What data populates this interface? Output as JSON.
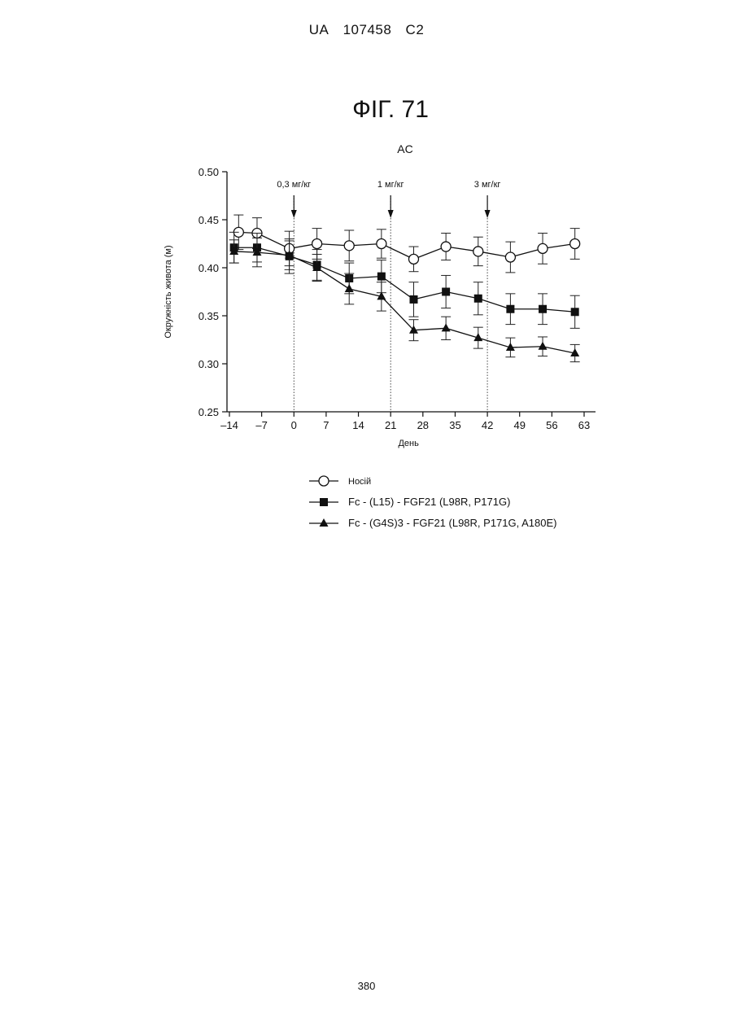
{
  "header": {
    "country": "UA",
    "number": "107458",
    "kind": "C2"
  },
  "figure_title": "ФІГ. 71",
  "page_number": "380",
  "chart_data": {
    "type": "line",
    "title": "AC",
    "xlabel": "День",
    "ylabel": "Окружність живота (м)",
    "xlim": [
      -14,
      63
    ],
    "ylim": [
      0.25,
      0.5
    ],
    "x_ticks": [
      -14,
      -7,
      0,
      7,
      14,
      21,
      28,
      35,
      42,
      49,
      56,
      63
    ],
    "x_tick_labels": [
      "–14",
      "–7",
      "0",
      "7",
      "14",
      "21",
      "28",
      "35",
      "42",
      "49",
      "56",
      "63"
    ],
    "y_ticks": [
      0.25,
      0.3,
      0.35,
      0.4,
      0.45,
      0.5
    ],
    "y_tick_labels": [
      "0.25",
      "0.30",
      "0.35",
      "0.40",
      "0.45",
      "0.50"
    ],
    "grid": false,
    "legend_position": "bottom",
    "annotations": [
      {
        "x": 0,
        "label": "0,3 мг/кг"
      },
      {
        "x": 21,
        "label": "1 мг/кг"
      },
      {
        "x": 42,
        "label": "3 мг/кг"
      }
    ],
    "series": [
      {
        "name": "Носій",
        "marker": "open-circle",
        "x": [
          -12,
          -8,
          -1,
          5,
          12,
          19,
          26,
          33,
          40,
          47,
          54,
          61
        ],
        "values": [
          0.437,
          0.436,
          0.42,
          0.425,
          0.423,
          0.425,
          0.409,
          0.422,
          0.417,
          0.411,
          0.42,
          0.425
        ],
        "errors": [
          0.018,
          0.016,
          0.018,
          0.016,
          0.016,
          0.015,
          0.013,
          0.014,
          0.015,
          0.016,
          0.016,
          0.016
        ]
      },
      {
        "name": "Fc - (L15) - FGF21 (L98R, P171G)",
        "marker": "filled-square",
        "x": [
          -13,
          -8,
          -1,
          5,
          12,
          19,
          26,
          33,
          40,
          47,
          54,
          61
        ],
        "values": [
          0.421,
          0.421,
          0.412,
          0.403,
          0.389,
          0.391,
          0.367,
          0.375,
          0.368,
          0.357,
          0.357,
          0.354
        ],
        "errors": [
          0.016,
          0.015,
          0.018,
          0.016,
          0.016,
          0.017,
          0.018,
          0.017,
          0.017,
          0.016,
          0.016,
          0.017
        ]
      },
      {
        "name": "Fc - (G4S)3 - FGF21 (L98R, P171G, A180E)",
        "marker": "filled-triangle",
        "x": [
          -13,
          -8,
          -1,
          5,
          12,
          19,
          26,
          33,
          40,
          47,
          54,
          61
        ],
        "values": [
          0.417,
          0.416,
          0.413,
          0.4,
          0.378,
          0.37,
          0.335,
          0.337,
          0.327,
          0.317,
          0.318,
          0.311
        ],
        "errors": [
          0.012,
          0.015,
          0.015,
          0.014,
          0.016,
          0.015,
          0.011,
          0.012,
          0.011,
          0.01,
          0.01,
          0.009
        ]
      }
    ]
  }
}
